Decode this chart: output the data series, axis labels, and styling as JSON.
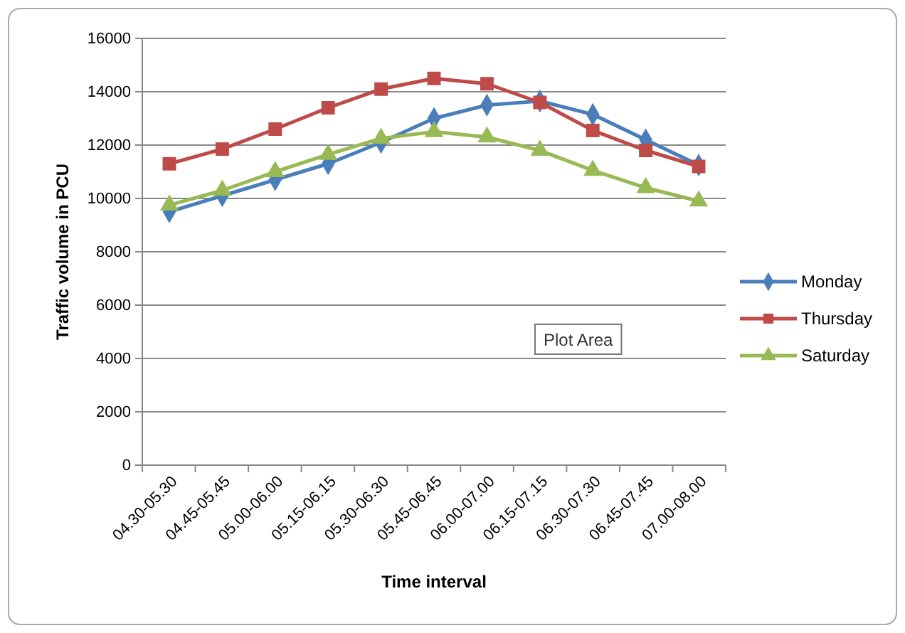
{
  "chart_data": {
    "type": "line",
    "xlabel": "Time interval",
    "ylabel": "Traffic volume in PCU",
    "categories": [
      "04.30-05.30",
      "04.45-05.45",
      "05.00-06.00",
      "05.15-06.15",
      "05.30-06.30",
      "05.45-06.45",
      "06.00-07.00",
      "06.15-07.15",
      "06.30-07.30",
      "06.45-07.45",
      "07.00-08.00"
    ],
    "series": [
      {
        "name": "Monday",
        "color": "#4a7ebb",
        "marker": "diamond",
        "values": [
          9500,
          10100,
          10700,
          11300,
          12100,
          13000,
          13500,
          13650,
          13150,
          12200,
          11250
        ]
      },
      {
        "name": "Thursday",
        "color": "#be4b48",
        "marker": "square",
        "values": [
          11300,
          11850,
          12600,
          13400,
          14100,
          14500,
          14300,
          13600,
          12550,
          11800,
          11200
        ]
      },
      {
        "name": "Saturday",
        "color": "#98b954",
        "marker": "triangle",
        "values": [
          9750,
          10300,
          11000,
          11650,
          12250,
          12500,
          12300,
          11800,
          11050,
          10400,
          9900
        ]
      }
    ],
    "ylim": [
      0,
      16000
    ],
    "yticks": [
      0,
      2000,
      4000,
      6000,
      8000,
      10000,
      12000,
      14000,
      16000
    ],
    "grid": "y",
    "legend": "right",
    "annotations": [
      "Plot Area"
    ]
  }
}
